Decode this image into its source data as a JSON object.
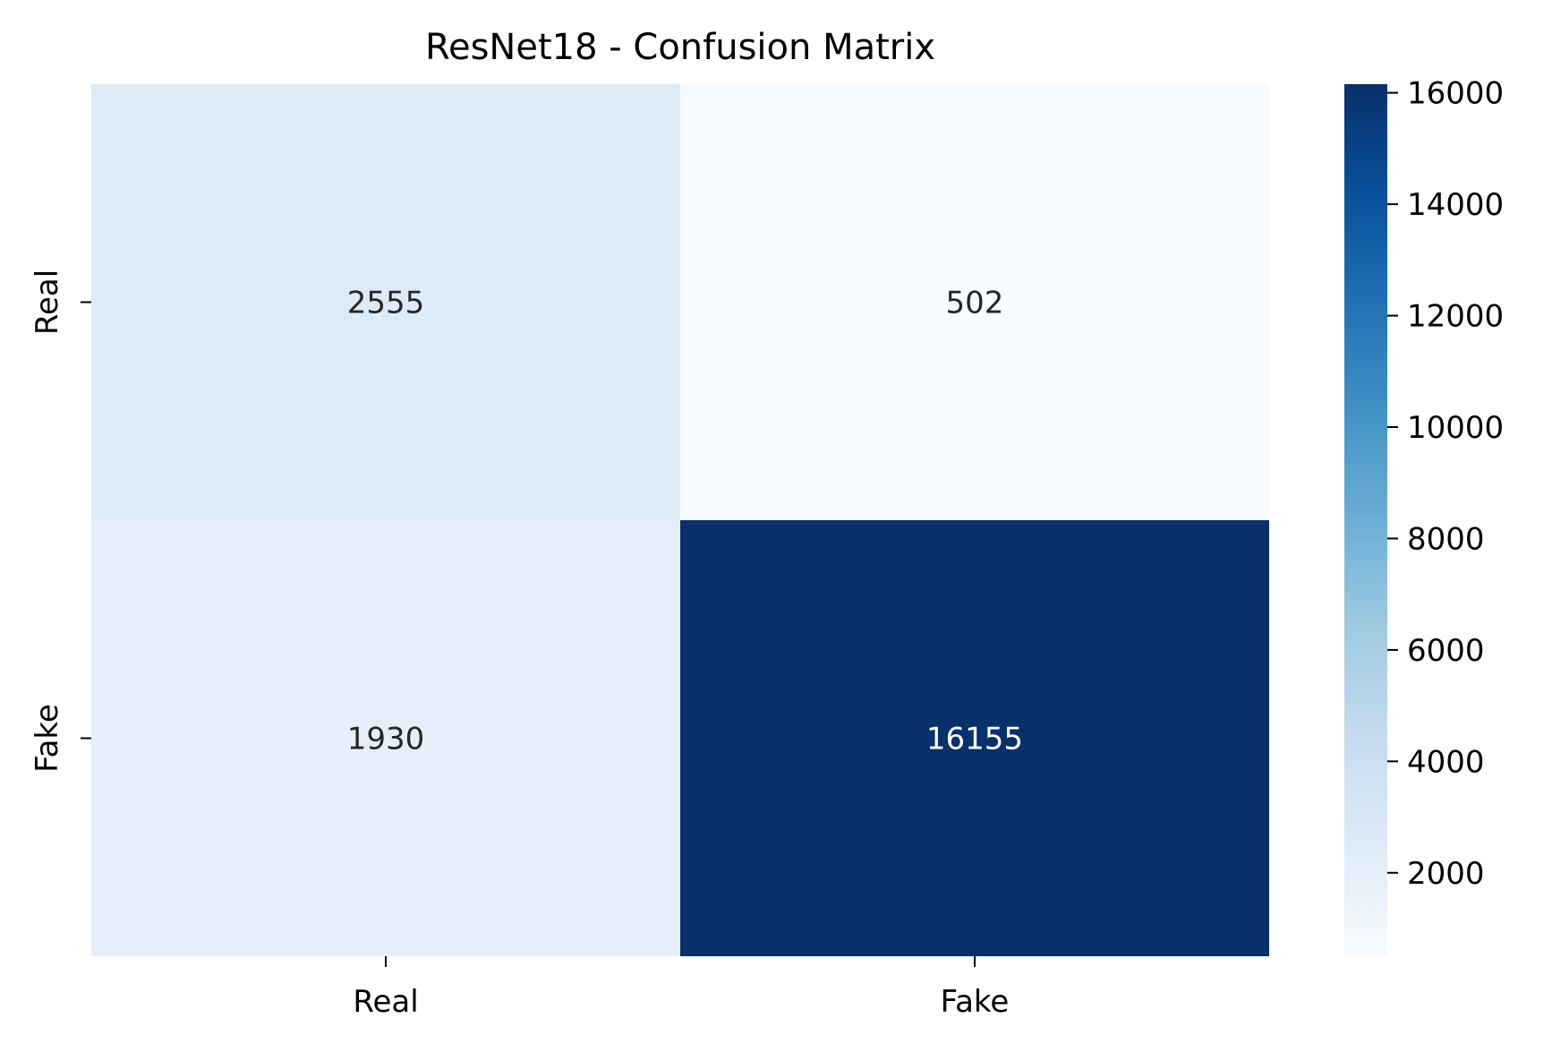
{
  "chart_data": {
    "type": "heatmap",
    "title": "ResNet18 - Confusion Matrix",
    "xlabel": "",
    "ylabel": "",
    "x_categories": [
      "Real",
      "Fake"
    ],
    "y_categories": [
      "Real",
      "Fake"
    ],
    "values": [
      [
        2555,
        502
      ],
      [
        1930,
        16155
      ]
    ],
    "colormap": "Blues",
    "colorbar": {
      "min": 502,
      "max": 16155,
      "ticks": [
        2000,
        4000,
        6000,
        8000,
        10000,
        12000,
        14000,
        16000
      ],
      "tick_labels": [
        "2000",
        "4000",
        "6000",
        "8000",
        "10000",
        "12000",
        "14000",
        "16000"
      ]
    },
    "annotations": true,
    "grid": false,
    "legend": "colorbar-right"
  }
}
